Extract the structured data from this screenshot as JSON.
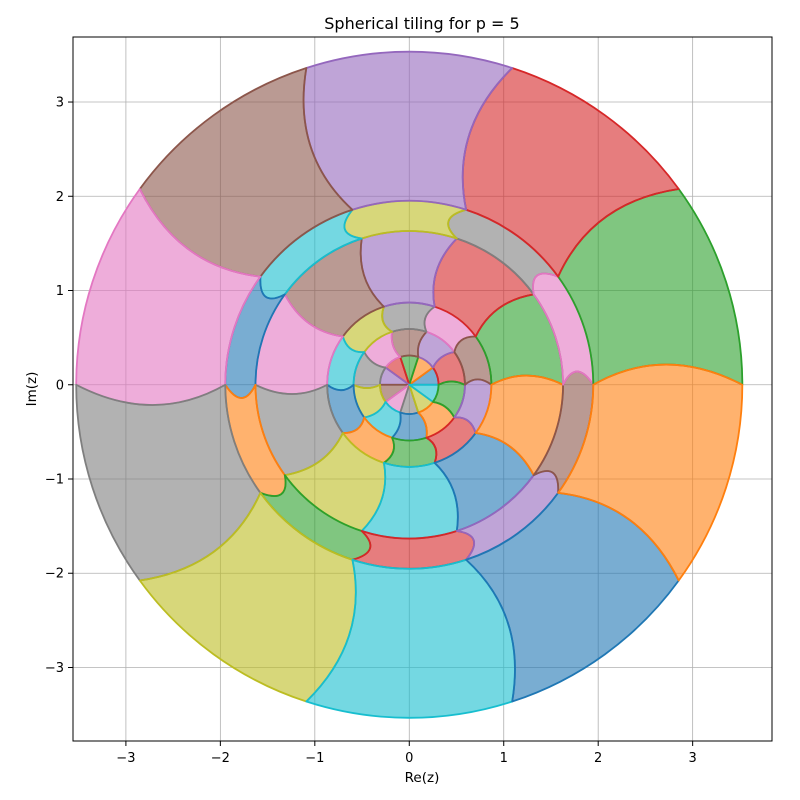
{
  "chart_data": {
    "type": "area",
    "title": "Spherical tiling for p = 5",
    "xlabel": "Re(z)",
    "ylabel": "Im(z)",
    "xlim": [
      -3.56,
      3.84
    ],
    "ylim": [
      -3.78,
      3.69
    ],
    "xticks": [
      -3,
      -2,
      -1,
      0,
      1,
      2,
      3
    ],
    "yticks": [
      -3,
      -2,
      -1,
      0,
      1,
      2,
      3
    ],
    "xtick_labels": [
      "−3",
      "−2",
      "−1",
      "0",
      "1",
      "2",
      "3"
    ],
    "ytick_labels": [
      "−3",
      "−2",
      "−1",
      "0",
      "1",
      "2",
      "3"
    ],
    "grid": true,
    "p": 5,
    "colors": [
      "#1f77b4",
      "#ff7f0e",
      "#2ca02c",
      "#d62728",
      "#9467bd",
      "#8c564b",
      "#e377c2",
      "#7f7f7f",
      "#bcbd22",
      "#17becf"
    ],
    "tile_rings": [
      {
        "inner_radius": 0.0,
        "outer_radius": 0.31,
        "start_angle_deg": 0,
        "vertex_twist_deg": 36,
        "color_offset": 0
      },
      {
        "inner_radius": 0.31,
        "outer_radius": 0.59,
        "start_angle_deg": 0,
        "vertex_twist_deg": 36,
        "color_offset": 3
      },
      {
        "inner_radius": 0.59,
        "outer_radius": 0.87,
        "start_angle_deg": 36,
        "vertex_twist_deg": 36,
        "color_offset": 6
      },
      {
        "inner_radius": 0.87,
        "outer_radius": 1.63,
        "start_angle_deg": 0,
        "vertex_twist_deg": 36,
        "color_offset": 2
      },
      {
        "inner_radius": 1.63,
        "outer_radius": 1.95,
        "start_angle_deg": 36,
        "vertex_twist_deg": 36,
        "color_offset": 7
      },
      {
        "inner_radius": 1.95,
        "outer_radius": 3.53,
        "start_angle_deg": 0,
        "vertex_twist_deg": 36,
        "color_offset": 2
      }
    ]
  }
}
